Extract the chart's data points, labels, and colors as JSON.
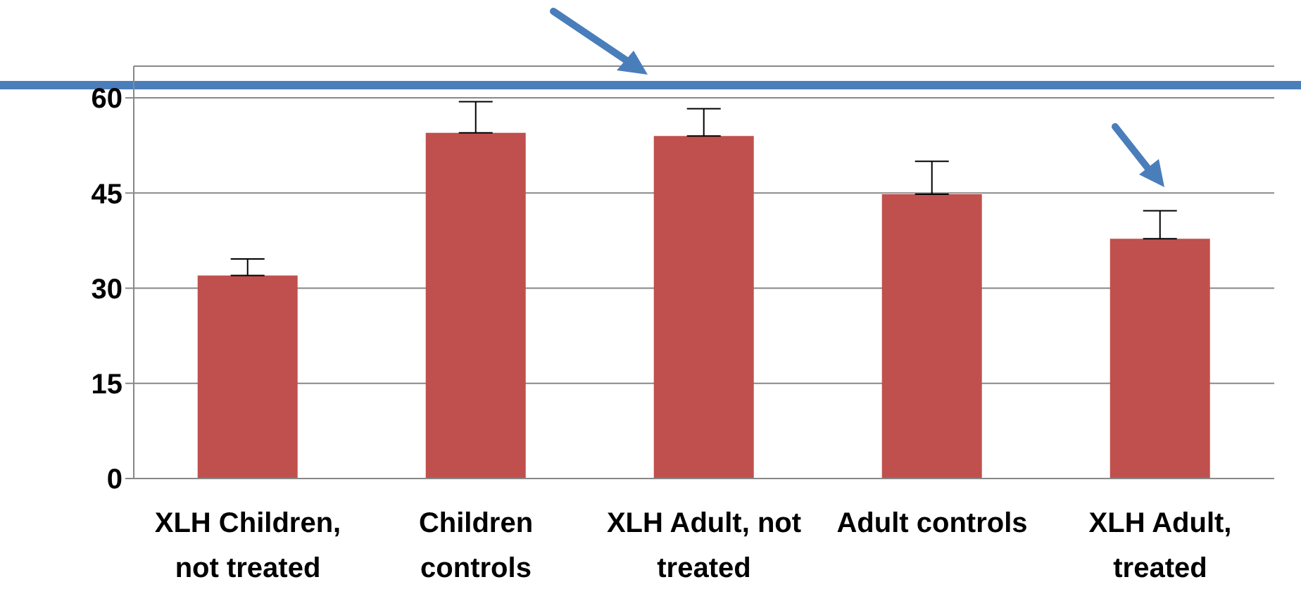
{
  "chart_data": {
    "type": "bar",
    "categories": [
      "XLH Children, not treated",
      "Children controls",
      "XLH Adult, not treated",
      "Adult controls",
      "XLH Adult, treated"
    ],
    "values": [
      32,
      54.5,
      54,
      44.8,
      37.8
    ],
    "color": "#c0504d",
    "errors": [
      [
        32,
        34.6
      ],
      [
        54.5,
        59.4
      ],
      [
        54,
        58.3
      ],
      [
        44.8,
        50
      ],
      [
        37.8,
        42.2
      ]
    ],
    "ylim": [
      0,
      65
    ],
    "yticks": [
      0,
      15,
      30,
      45,
      60
    ],
    "grid": "y",
    "legend": false,
    "ref_lines": [
      {
        "axis": "y",
        "value": 62,
        "color": "#4a7ebb"
      }
    ]
  }
}
